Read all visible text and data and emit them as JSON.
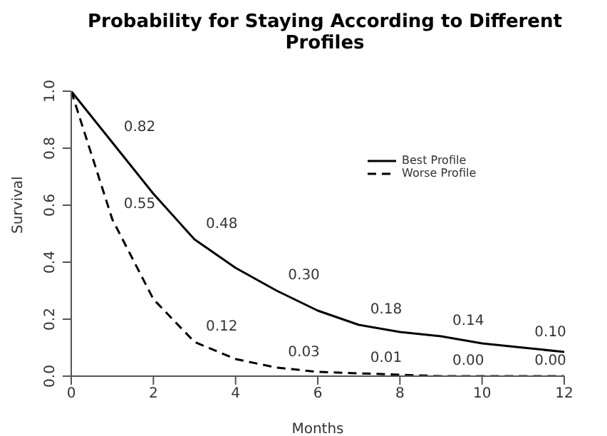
{
  "chart_data": {
    "type": "line",
    "title": "Probability for Staying According to Different Profiles",
    "xlabel": "Months",
    "ylabel": "Survival",
    "x": [
      0,
      1,
      2,
      3,
      4,
      5,
      6,
      7,
      8,
      9,
      10,
      11,
      12
    ],
    "series": [
      {
        "name": "Best Profile",
        "color": "#000000",
        "line_style": "solid",
        "values": [
          1.0,
          0.82,
          0.64,
          0.48,
          0.38,
          0.3,
          0.23,
          0.18,
          0.155,
          0.14,
          0.115,
          0.1,
          0.085
        ],
        "value_labels": [
          null,
          "0.82",
          null,
          "0.48",
          null,
          "0.30",
          null,
          "0.18",
          null,
          "0.14",
          null,
          "0.10",
          null
        ]
      },
      {
        "name": "Worse Profile",
        "color": "#000000",
        "line_style": "dashed",
        "values": [
          1.0,
          0.55,
          0.27,
          0.12,
          0.06,
          0.03,
          0.015,
          0.01,
          0.005,
          0.0,
          0.0,
          0.0,
          0.0
        ],
        "value_labels": [
          null,
          "0.55",
          null,
          "0.12",
          null,
          "0.03",
          null,
          "0.01",
          null,
          "0.00",
          null,
          "0.00",
          null
        ]
      }
    ],
    "xlim": [
      0,
      12
    ],
    "xticks": [
      0,
      2,
      4,
      6,
      8,
      10,
      12
    ],
    "ylim": [
      0,
      1.0
    ],
    "yticks": [
      {
        "value": 0,
        "label": "0.0"
      },
      {
        "value": 0.2,
        "label": "0.2"
      },
      {
        "value": 0.4,
        "label": "0.4"
      },
      {
        "value": 0.6,
        "label": "0.6"
      },
      {
        "value": 0.8,
        "label": "0.8"
      },
      {
        "value": 1.0,
        "label": "1.0"
      }
    ],
    "legend": "top right",
    "marker": "none",
    "grid": false
  }
}
